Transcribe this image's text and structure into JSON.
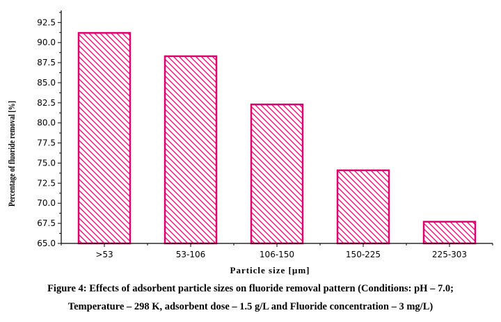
{
  "chart_data": {
    "type": "bar",
    "categories": [
      ">53",
      "53-106",
      "106-150",
      "150-225",
      "225-303"
    ],
    "values": [
      91.2,
      88.3,
      82.3,
      74.1,
      67.7
    ],
    "xlabel": "Particle size [µm]",
    "ylabel": "Percentage of fluoride removal [%]",
    "ylim": [
      65.0,
      94.0
    ],
    "yticks": [
      "65.0",
      "67.5",
      "70.0",
      "72.5",
      "75.0",
      "77.5",
      "80.0",
      "82.5",
      "85.0",
      "87.5",
      "90.0",
      "92.5"
    ],
    "grid": false,
    "bar_fill": "hatched",
    "bar_color": "#e0006e"
  },
  "caption": {
    "line1": "Figure 4: Effects of adsorbent particle sizes on fluoride removal pattern (Conditions: pH – 7.0;",
    "line2": "Temperature – 298 K, adsorbent dose – 1.5 g/L and Fluoride concentration – 3 mg/L)"
  }
}
